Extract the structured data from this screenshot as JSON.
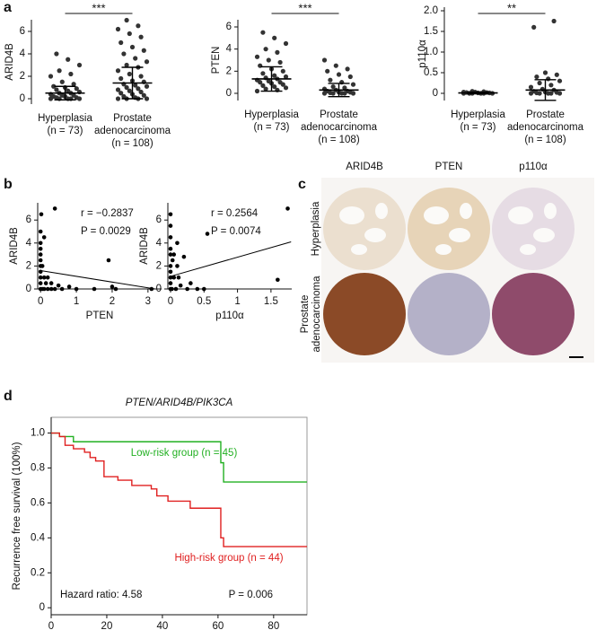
{
  "panels": [
    "a",
    "b",
    "c",
    "d"
  ],
  "ihc": {
    "columns": [
      "ARID4B",
      "PTEN",
      "p110α"
    ],
    "rows": [
      [
        "Hyperplasia"
      ],
      [
        "Prostate",
        "adenocarcinoma"
      ]
    ]
  },
  "chart_data": [
    {
      "type": "dot",
      "ylabel": "ARID4B",
      "significance": "***",
      "color": "#333333",
      "categories": [
        [
          "Hyperplasia",
          "(n = 73)"
        ],
        [
          "Prostate",
          "adenocarcinoma",
          "(n = 108)"
        ]
      ],
      "groups": [
        {
          "values": [
            0,
            0,
            0,
            0,
            0,
            0.1,
            0.1,
            0.2,
            0.2,
            0.3,
            0.3,
            0.4,
            0.5,
            0.5,
            0.6,
            0.7,
            0.8,
            0.9,
            1.0,
            1.1,
            1.3,
            1.5,
            2.0,
            2.2,
            2.5,
            3.0,
            3.5,
            4.0
          ],
          "mean": 0.5,
          "sd": 0.6
        },
        {
          "values": [
            0,
            0,
            0,
            0,
            0.1,
            0.2,
            0.3,
            0.4,
            0.5,
            0.6,
            0.7,
            0.8,
            0.9,
            1.0,
            1.1,
            1.2,
            1.3,
            1.5,
            1.6,
            1.8,
            2.0,
            2.2,
            2.5,
            2.8,
            3.0,
            3.3,
            3.6,
            4.0,
            4.3,
            4.6,
            5.0,
            5.5,
            5.8,
            6.2,
            6.5,
            7.0
          ],
          "mean": 1.4,
          "sd": 1.4
        }
      ],
      "ylim": [
        -0.48,
        7.04
      ],
      "yticks": [
        0,
        2,
        4,
        6
      ]
    },
    {
      "type": "dot",
      "ylabel": "PTEN",
      "significance": "***",
      "color": "#333333",
      "categories": [
        [
          "Hyperplasia",
          "(n = 73)"
        ],
        [
          "Prostate",
          "adenocarcinoma",
          "(n = 108)"
        ]
      ],
      "groups": [
        {
          "values": [
            0.2,
            0.3,
            0.4,
            0.5,
            0.6,
            0.7,
            0.8,
            0.9,
            1.0,
            1.0,
            1.1,
            1.2,
            1.3,
            1.4,
            1.5,
            1.6,
            1.8,
            2.0,
            2.2,
            2.5,
            2.8,
            3.0,
            3.3,
            3.7,
            4.0,
            4.5,
            5.0,
            5.5
          ],
          "mean": 1.3,
          "sd": 1.1
        },
        {
          "values": [
            0,
            0,
            0,
            0,
            0,
            0.05,
            0.1,
            0.1,
            0.2,
            0.2,
            0.3,
            0.4,
            0.5,
            0.6,
            0.8,
            1.0,
            1.2,
            1.5,
            1.7,
            2.0,
            2.2,
            2.5,
            3.0
          ],
          "mean": 0.3,
          "sd": 0.6
        }
      ],
      "ylim": [
        -0.65,
        6.65
      ],
      "yticks": [
        0,
        2,
        4,
        6
      ]
    },
    {
      "type": "dot",
      "ylabel": "p110α",
      "significance": "**",
      "color": "#333333",
      "categories": [
        [
          "Hyperplasia",
          "(n = 73)"
        ],
        [
          "Prostate",
          "adenocarcinoma",
          "(n = 108)"
        ]
      ],
      "groups": [
        {
          "values": [
            0,
            0,
            0,
            0,
            0,
            0,
            0.01,
            0.01,
            0.02,
            0.02,
            0.03,
            0.03,
            0.04,
            0.05
          ],
          "mean": 0.01,
          "sd": 0.02
        },
        {
          "values": [
            0,
            0,
            0,
            0,
            0,
            0.01,
            0.02,
            0.03,
            0.05,
            0.08,
            0.1,
            0.15,
            0.2,
            0.25,
            0.3,
            0.35,
            0.4,
            0.45,
            0.5,
            1.6,
            1.75
          ],
          "mean": 0.08,
          "sd": 0.25
        }
      ],
      "ylim": [
        -0.174,
        2.087
      ],
      "yticks": [
        0,
        0.5,
        {
          "value": 1,
          "label": "1.0"
        },
        1.5,
        {
          "value": 2,
          "label": "2.0"
        }
      ]
    },
    {
      "type": "scatter",
      "xlabel": "PTEN",
      "ylabel": "ARID4B",
      "color": "#000000",
      "annotations": [
        "r = −0.2837",
        "P = 0.0029"
      ],
      "x": [
        0,
        0,
        0,
        0,
        0,
        0,
        0,
        0,
        0,
        0,
        0.05,
        0.05,
        0.1,
        0.1,
        0.1,
        0.15,
        0.2,
        0.2,
        0.3,
        0.3,
        0.4,
        0.5,
        0.6,
        0.8,
        1.0,
        1.5,
        1.9,
        2.0,
        2.1,
        3.1,
        0.4,
        0.02
      ],
      "y": [
        0,
        0.5,
        1,
        1.5,
        2,
        2.5,
        3,
        3.5,
        4,
        5,
        0,
        2,
        0,
        1,
        4.5,
        0.5,
        0,
        1,
        0,
        0.5,
        0,
        0.3,
        0,
        0.2,
        0,
        0,
        2.5,
        0.2,
        0,
        0,
        7,
        6.5
      ],
      "fit": {
        "x": [
          0,
          3.2
        ],
        "y": [
          1.6,
          0
        ]
      },
      "xlim": [
        -0.08,
        3.38
      ],
      "xticks": [
        0,
        1,
        2,
        3
      ],
      "ylim": [
        0,
        7.5
      ],
      "yticks": [
        0,
        2,
        4,
        6
      ]
    },
    {
      "type": "scatter",
      "xlabel": "p110α",
      "ylabel": "ARID4B",
      "color": "#000000",
      "annotations": [
        "r = 0.2564",
        "P = 0.0074"
      ],
      "x": [
        0,
        0,
        0,
        0,
        0,
        0,
        0,
        0,
        0,
        0,
        0.02,
        0.03,
        0.05,
        0.05,
        0.08,
        0.1,
        0.1,
        0.12,
        0.15,
        0.2,
        0.25,
        0.3,
        0.4,
        0.5,
        0.55,
        1.6,
        1.75
      ],
      "y": [
        0,
        0.5,
        1,
        1.5,
        2,
        3,
        3.5,
        4.5,
        5.5,
        6.5,
        0,
        2.5,
        1,
        3,
        0,
        2,
        4,
        1,
        0.3,
        2.8,
        0,
        0.5,
        0,
        0,
        4.8,
        0.8,
        7
      ],
      "fit": {
        "x": [
          0,
          1.8
        ],
        "y": [
          1.1,
          4.1
        ]
      },
      "xlim": [
        -0.04,
        1.81
      ],
      "xticks": [
        0,
        0.5,
        1,
        1.5
      ],
      "ylim": [
        0,
        7.5
      ],
      "yticks": [
        0,
        2,
        4,
        6
      ]
    },
    {
      "type": "km",
      "title": "PTEN/ARID4B/PIK3CA",
      "ylabel": "Recurrence free survival (100%)",
      "annotations": [
        "Hazard ratio: 4.58",
        "P = 0.006"
      ],
      "series": [
        {
          "name": "Low-risk group (n = 45)",
          "color": "#22b022",
          "x": [
            0,
            3,
            8,
            60,
            61,
            62,
            92
          ],
          "values": [
            1,
            0.98,
            0.95,
            0.95,
            0.83,
            0.72,
            0.72
          ]
        },
        {
          "name": "High-risk group (n = 44)",
          "color": "#e02020",
          "x": [
            0,
            3,
            5,
            8,
            12,
            14,
            16,
            19,
            24,
            29,
            36,
            38,
            42,
            50,
            60,
            61,
            62,
            92
          ],
          "values": [
            1,
            0.98,
            0.93,
            0.91,
            0.89,
            0.86,
            0.84,
            0.75,
            0.73,
            0.7,
            0.68,
            0.64,
            0.61,
            0.57,
            0.57,
            0.4,
            0.35,
            0.35
          ]
        }
      ],
      "xlim": [
        0,
        92
      ],
      "xticks": [
        0,
        20,
        40,
        60,
        80
      ],
      "ylim": [
        -0.04,
        1.09
      ],
      "yticks": [
        0,
        0.2,
        0.4,
        0.6,
        0.8,
        {
          "value": 1,
          "label": "1.0"
        }
      ]
    }
  ]
}
